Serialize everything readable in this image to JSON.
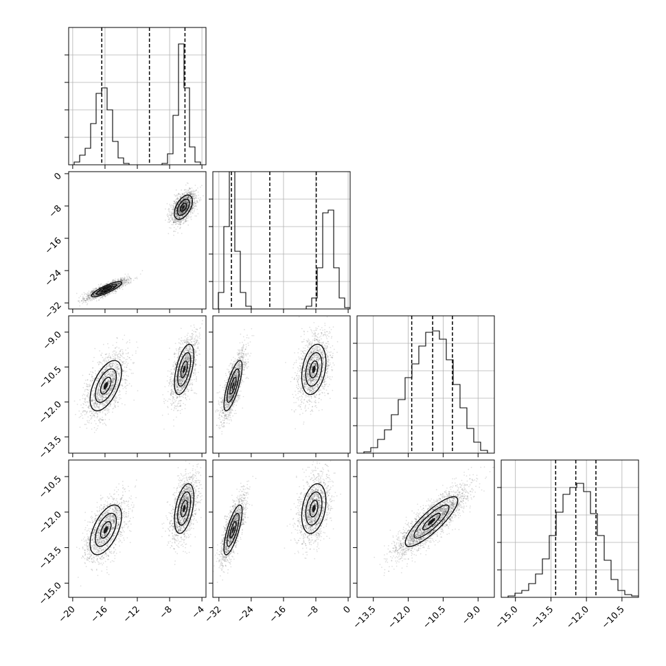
{
  "chart_data": {
    "type": "corner",
    "title": "",
    "n_params": 4,
    "parameters": [
      {
        "label": "",
        "range": [
          -20.5,
          -3.5
        ],
        "ticks": [
          -20,
          -16,
          -12,
          -8,
          -4
        ],
        "tick_labels": [
          "-20",
          "-16",
          "-12",
          "-8",
          "-4"
        ],
        "quantiles": [
          -16.4,
          -10.5,
          -6.1
        ],
        "hist_bins": [
          0.0,
          0.02,
          0.07,
          0.12,
          0.3,
          0.52,
          0.56,
          0.4,
          0.17,
          0.05,
          0.01,
          0.0,
          0.0,
          0.0,
          0.0,
          0.0,
          0.0,
          0.01,
          0.08,
          0.36,
          0.88,
          0.56,
          0.13,
          0.02,
          0.0
        ],
        "modes": [
          {
            "mean": -15.6,
            "sd": 1.3,
            "weight": 0.5
          },
          {
            "mean": -6.3,
            "sd": 0.8,
            "weight": 0.5
          }
        ]
      },
      {
        "label": "",
        "range": [
          -33.5,
          0.5
        ],
        "ticks": [
          -32,
          -24,
          -16,
          -8,
          0
        ],
        "tick_labels": [
          "-32",
          "-24",
          "-16",
          "-8",
          "0"
        ],
        "quantiles": [
          -28.9,
          -19.4,
          -7.9
        ],
        "hist_bins": [
          0.0,
          0.12,
          0.6,
          1.0,
          0.42,
          0.12,
          0.02,
          0.0,
          0.0,
          0.0,
          0.0,
          0.0,
          0.0,
          0.0,
          0.0,
          0.0,
          0.0,
          0.02,
          0.08,
          0.3,
          0.7,
          0.72,
          0.3,
          0.08,
          0.01
        ],
        "modes": [
          {
            "mean": -28.5,
            "sd": 1.5,
            "weight": 0.5
          },
          {
            "mean": -8.5,
            "sd": 2.0,
            "weight": 0.5
          }
        ]
      },
      {
        "label": "",
        "range": [
          -14.2,
          -8.3
        ],
        "ticks": [
          -13.5,
          -12.0,
          -10.5,
          -9.0
        ],
        "tick_labels": [
          "-13.5",
          "-12.0",
          "-10.5",
          "-9.0"
        ],
        "quantiles": [
          -11.85,
          -10.95,
          -10.1
        ],
        "hist_bins": [
          0.0,
          0.01,
          0.04,
          0.1,
          0.17,
          0.28,
          0.39,
          0.55,
          0.65,
          0.78,
          0.88,
          0.89,
          0.83,
          0.68,
          0.5,
          0.33,
          0.18,
          0.08,
          0.02,
          0.0
        ],
        "modes": [
          {
            "mean": -11.0,
            "sd": 0.75,
            "weight": 1.0
          }
        ]
      },
      {
        "label": "",
        "range": [
          -15.6,
          -9.8
        ],
        "ticks": [
          -15.0,
          -13.5,
          -12.0,
          -10.5
        ],
        "tick_labels": [
          "-15.0",
          "-13.5",
          "-12.0",
          "-10.5"
        ],
        "quantiles": [
          -13.3,
          -12.45,
          -11.6
        ],
        "hist_bins": [
          0.0,
          0.01,
          0.03,
          0.05,
          0.1,
          0.17,
          0.28,
          0.45,
          0.62,
          0.75,
          0.8,
          0.83,
          0.77,
          0.61,
          0.45,
          0.27,
          0.13,
          0.05,
          0.02,
          0.01
        ],
        "modes": [
          {
            "mean": -12.4,
            "sd": 0.7,
            "weight": 1.0
          }
        ]
      }
    ],
    "hist_ylim": [
      0,
      1
    ],
    "hist_yticks": [
      0.2,
      0.4,
      0.6,
      0.8
    ],
    "pairs": [
      {
        "row": 1,
        "col": 0,
        "modes": [
          {
            "mx": -15.8,
            "my": -28.6,
            "sx": 1.25,
            "sy": 1.25,
            "rho": 0.85
          },
          {
            "mx": -6.3,
            "my": -8.3,
            "sx": 0.75,
            "sy": 2.0,
            "rho": 0.5
          }
        ]
      },
      {
        "row": 2,
        "col": 0,
        "modes": [
          {
            "mx": -15.9,
            "my": -11.3,
            "sx": 1.3,
            "sy": 0.72,
            "rho": 0.55
          },
          {
            "mx": -6.2,
            "my": -10.6,
            "sx": 0.8,
            "sy": 0.72,
            "rho": 0.55
          }
        ]
      },
      {
        "row": 2,
        "col": 1,
        "modes": [
          {
            "mx": -28.5,
            "my": -11.3,
            "sx": 1.5,
            "sy": 0.72,
            "rho": 0.75
          },
          {
            "mx": -8.5,
            "my": -10.6,
            "sx": 2.0,
            "sy": 0.72,
            "rho": 0.3
          }
        ]
      },
      {
        "row": 3,
        "col": 0,
        "modes": [
          {
            "mx": -15.9,
            "my": -12.75,
            "sx": 1.3,
            "sy": 0.7,
            "rho": 0.55
          },
          {
            "mx": -6.2,
            "my": -11.85,
            "sx": 0.8,
            "sy": 0.7,
            "rho": 0.45
          }
        ]
      },
      {
        "row": 3,
        "col": 1,
        "modes": [
          {
            "mx": -28.5,
            "my": -12.75,
            "sx": 1.5,
            "sy": 0.7,
            "rho": 0.75
          },
          {
            "mx": -8.5,
            "my": -11.85,
            "sx": 2.0,
            "sy": 0.7,
            "rho": 0.3
          }
        ]
      },
      {
        "row": 3,
        "col": 2,
        "modes": [
          {
            "mx": -11.0,
            "my": -12.4,
            "sx": 0.75,
            "sy": 0.7,
            "rho": 0.85
          }
        ]
      }
    ],
    "contour_levels": [
      0.5,
      1.0,
      1.5
    ],
    "grid": true,
    "legend": "none"
  }
}
